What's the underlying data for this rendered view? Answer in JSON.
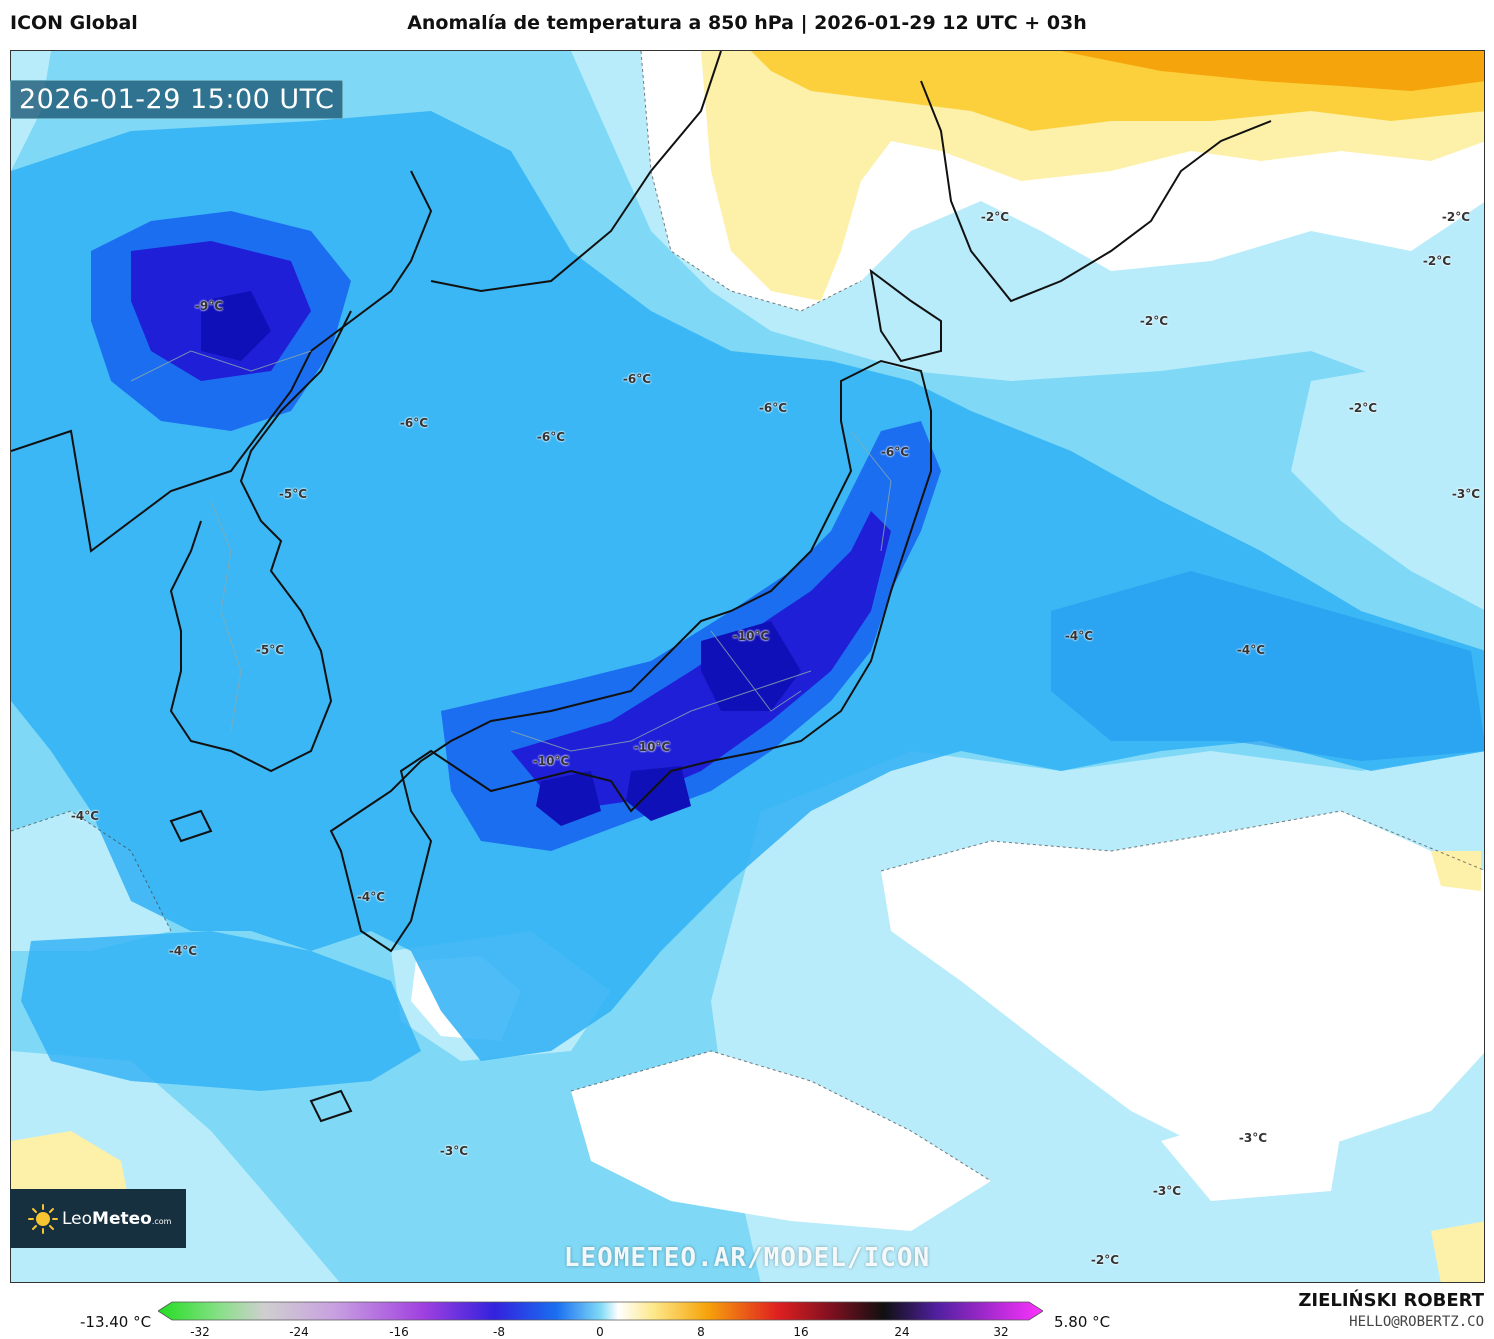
{
  "header": {
    "model": "ICON Global",
    "title": "Anomalía de temperatura a 850 hPa | 2026-01-29 12 UTC + 03h"
  },
  "map": {
    "valid_time": "2026-01-29 15:00 UTC",
    "watermark": "LEOMETEO.AR/MODEL/ICON",
    "contour_labels": [
      {
        "id": "l1",
        "text": "-9°C"
      },
      {
        "id": "l2",
        "text": "-6°C"
      },
      {
        "id": "l3",
        "text": "-6°C"
      },
      {
        "id": "l4",
        "text": "-6°C"
      },
      {
        "id": "l5",
        "text": "-6°C"
      },
      {
        "id": "l6",
        "text": "-6°C"
      },
      {
        "id": "l7",
        "text": "-5°C"
      },
      {
        "id": "l8",
        "text": "-5°C"
      },
      {
        "id": "l9",
        "text": "-10°C"
      },
      {
        "id": "l10",
        "text": "-10°C"
      },
      {
        "id": "l11",
        "text": "-10°C"
      },
      {
        "id": "l12",
        "text": "-4°C"
      },
      {
        "id": "l13",
        "text": "-4°C"
      },
      {
        "id": "l14",
        "text": "-4°C"
      },
      {
        "id": "l15",
        "text": "-4°C"
      },
      {
        "id": "l16",
        "text": "-4°C"
      },
      {
        "id": "l17",
        "text": "-2°C"
      },
      {
        "id": "l18",
        "text": "-2°C"
      },
      {
        "id": "l19",
        "text": "-2°C"
      },
      {
        "id": "l20",
        "text": "-2°C"
      },
      {
        "id": "l21",
        "text": "-2°C"
      },
      {
        "id": "l22",
        "text": "-2°C"
      },
      {
        "id": "l23",
        "text": "-3°C"
      },
      {
        "id": "l24",
        "text": "-3°C"
      },
      {
        "id": "l25",
        "text": "-3°C"
      },
      {
        "id": "l26",
        "text": "-3°C"
      }
    ]
  },
  "logo": {
    "brand_light": "Leo",
    "brand_bold": "Meteo",
    "suffix": ".com"
  },
  "colorbar": {
    "min_label": "-13.40 °C",
    "max_label": "5.80 °C",
    "ticks": [
      "-32",
      "-24",
      "-16",
      "-8",
      "0",
      "8",
      "16",
      "24",
      "32"
    ]
  },
  "author": {
    "name": "ZIELIŃSKI ROBERT",
    "email": "HELLO@ROBERTZ.CO"
  },
  "colors": {
    "deep_blue": "#1f1fd8",
    "blue": "#1c6ef0",
    "mid_blue": "#2fb0f5",
    "light_blue": "#7fd9f6",
    "pale_blue": "#b9ecfb",
    "white": "#ffffff",
    "pale_yellow": "#fdf0a8",
    "yellow": "#fbd03c",
    "orange": "#f6a40c"
  }
}
